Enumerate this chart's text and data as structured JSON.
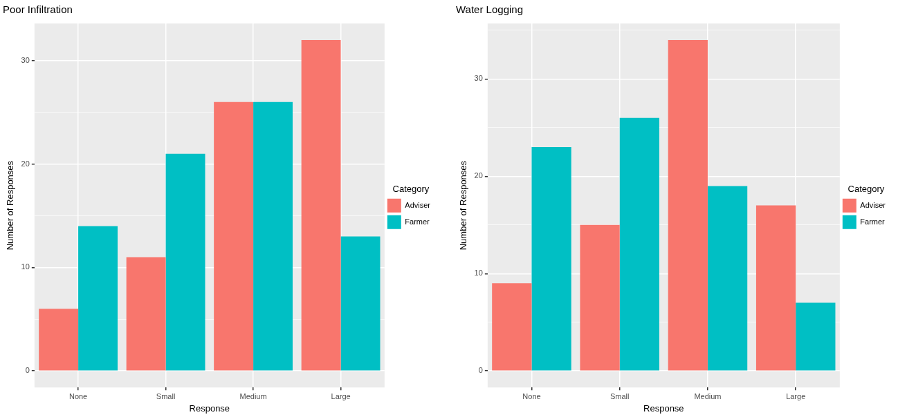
{
  "chart_data": [
    {
      "type": "bar",
      "title": "Poor Infiltration",
      "xlabel": "Response",
      "ylabel": "Number of Responses",
      "legend_title": "Category",
      "categories": [
        "None",
        "Small",
        "Medium",
        "Large"
      ],
      "series": [
        {
          "name": "Adviser",
          "color": "#f8766d",
          "values": [
            6,
            11,
            26,
            32
          ]
        },
        {
          "name": "Farmer",
          "color": "#00bfc4",
          "values": [
            14,
            21,
            26,
            13
          ]
        }
      ],
      "ylim": [
        -1.6,
        33.6
      ],
      "yticks": [
        0,
        {
          "value": 5,
          "label": null
        },
        10,
        {
          "value": 15,
          "label": null
        },
        20,
        {
          "value": 25,
          "label": null
        },
        30
      ],
      "grid": true,
      "legend": "right"
    },
    {
      "type": "bar",
      "title": "Water Logging",
      "xlabel": "Response",
      "ylabel": "Number of Responses",
      "legend_title": "Category",
      "categories": [
        "None",
        "Small",
        "Medium",
        "Large"
      ],
      "series": [
        {
          "name": "Adviser",
          "color": "#f8766d",
          "values": [
            9,
            15,
            34,
            17
          ]
        },
        {
          "name": "Farmer",
          "color": "#00bfc4",
          "values": [
            23,
            26,
            19,
            7
          ]
        }
      ],
      "ylim": [
        -1.7,
        35.7
      ],
      "yticks": [
        0,
        {
          "value": 5,
          "label": null
        },
        10,
        {
          "value": 15,
          "label": null
        },
        20,
        {
          "value": 25,
          "label": null
        },
        30,
        {
          "value": 35,
          "label": null
        }
      ],
      "grid": true,
      "legend": "right"
    }
  ]
}
